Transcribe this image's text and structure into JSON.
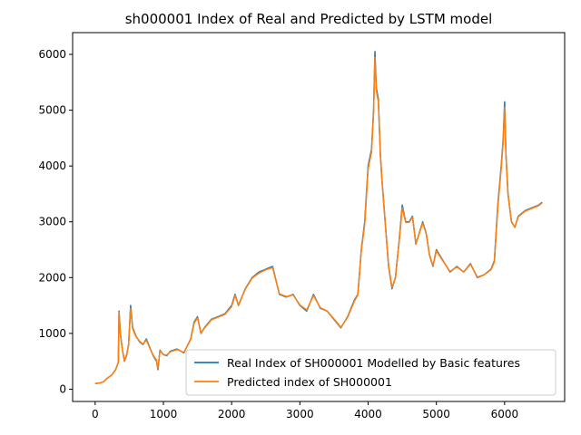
{
  "chart_data": {
    "type": "line",
    "title": "sh000001 Index of Real and Predicted by LSTM model",
    "xlabel": "",
    "ylabel": "",
    "xlim": [
      -330,
      6880
    ],
    "ylim": [
      -220,
      6390
    ],
    "xticks": [
      0,
      1000,
      2000,
      3000,
      4000,
      5000,
      6000
    ],
    "yticks": [
      0,
      1000,
      2000,
      3000,
      4000,
      5000,
      6000
    ],
    "grid": false,
    "legend_position": "lower-right",
    "series": [
      {
        "name": "Real Index of SH000001 Modelled by Basic features",
        "color": "#1f77b4",
        "x": [
          0,
          60,
          120,
          180,
          240,
          300,
          340,
          350,
          370,
          400,
          430,
          460,
          490,
          520,
          550,
          600,
          650,
          700,
          750,
          800,
          850,
          900,
          920,
          950,
          1000,
          1050,
          1100,
          1200,
          1300,
          1400,
          1450,
          1500,
          1550,
          1600,
          1700,
          1800,
          1900,
          2000,
          2050,
          2100,
          2200,
          2300,
          2400,
          2500,
          2600,
          2700,
          2800,
          2900,
          3000,
          3100,
          3200,
          3300,
          3400,
          3500,
          3600,
          3700,
          3800,
          3850,
          3900,
          3950,
          4000,
          4050,
          4080,
          4100,
          4120,
          4150,
          4180,
          4200,
          4250,
          4300,
          4350,
          4400,
          4450,
          4500,
          4550,
          4600,
          4650,
          4700,
          4750,
          4800,
          4850,
          4900,
          4950,
          5000,
          5100,
          5200,
          5300,
          5400,
          5500,
          5600,
          5700,
          5800,
          5850,
          5900,
          5950,
          5980,
          6000,
          6020,
          6050,
          6100,
          6150,
          6200,
          6300,
          6400,
          6500,
          6550
        ],
        "values": [
          100,
          110,
          130,
          200,
          250,
          350,
          480,
          1400,
          1000,
          700,
          500,
          600,
          800,
          1500,
          1100,
          950,
          850,
          800,
          900,
          750,
          600,
          500,
          350,
          700,
          620,
          600,
          680,
          720,
          650,
          900,
          1200,
          1300,
          1000,
          1100,
          1250,
          1300,
          1350,
          1500,
          1700,
          1500,
          1800,
          2000,
          2100,
          2150,
          2200,
          1700,
          1650,
          1700,
          1500,
          1400,
          1700,
          1450,
          1400,
          1250,
          1100,
          1300,
          1600,
          1700,
          2500,
          3000,
          4000,
          4300,
          5000,
          6050,
          5400,
          5200,
          4200,
          3800,
          3000,
          2200,
          1800,
          2000,
          2600,
          3300,
          3000,
          3000,
          3100,
          2600,
          2800,
          3000,
          2800,
          2400,
          2200,
          2500,
          2300,
          2100,
          2200,
          2100,
          2250,
          2000,
          2050,
          2150,
          2300,
          3300,
          4000,
          4500,
          5150,
          4200,
          3500,
          3000,
          2900,
          3100,
          3200,
          3250,
          3300,
          3350
        ]
      },
      {
        "name": "Predicted index of SH000001",
        "color": "#ff7f0e",
        "x": [
          0,
          60,
          120,
          180,
          240,
          300,
          340,
          350,
          370,
          400,
          430,
          460,
          490,
          520,
          550,
          600,
          650,
          700,
          750,
          800,
          850,
          900,
          920,
          950,
          1000,
          1050,
          1100,
          1200,
          1300,
          1400,
          1450,
          1500,
          1550,
          1600,
          1700,
          1800,
          1900,
          2000,
          2050,
          2100,
          2200,
          2300,
          2400,
          2500,
          2600,
          2700,
          2800,
          2900,
          3000,
          3100,
          3200,
          3300,
          3400,
          3500,
          3600,
          3700,
          3800,
          3850,
          3900,
          3950,
          4000,
          4050,
          4080,
          4100,
          4120,
          4150,
          4180,
          4200,
          4250,
          4300,
          4350,
          4400,
          4450,
          4500,
          4550,
          4600,
          4650,
          4700,
          4750,
          4800,
          4850,
          4900,
          4950,
          5000,
          5100,
          5200,
          5300,
          5400,
          5500,
          5600,
          5700,
          5800,
          5850,
          5900,
          5950,
          5980,
          6000,
          6020,
          6050,
          6100,
          6150,
          6200,
          6300,
          6400,
          6500,
          6550
        ],
        "values": [
          100,
          110,
          130,
          200,
          250,
          350,
          480,
          1380,
          980,
          690,
          510,
          610,
          790,
          1450,
          1080,
          940,
          860,
          810,
          880,
          740,
          610,
          520,
          370,
          690,
          620,
          610,
          670,
          710,
          660,
          890,
          1180,
          1280,
          1010,
          1090,
          1240,
          1290,
          1340,
          1480,
          1680,
          1510,
          1790,
          1990,
          2080,
          2140,
          2180,
          1710,
          1660,
          1690,
          1510,
          1420,
          1680,
          1460,
          1400,
          1260,
          1110,
          1290,
          1580,
          1690,
          2480,
          2950,
          3950,
          4250,
          4950,
          5950,
          5350,
          5150,
          4180,
          3780,
          2980,
          2220,
          1820,
          1990,
          2580,
          3250,
          2990,
          2990,
          3080,
          2610,
          2790,
          2980,
          2790,
          2410,
          2210,
          2480,
          2290,
          2110,
          2190,
          2100,
          2240,
          2010,
          2050,
          2140,
          2280,
          3250,
          3950,
          4450,
          5050,
          4180,
          3480,
          3010,
          2900,
          3090,
          3190,
          3240,
          3290,
          3340
        ]
      }
    ]
  }
}
